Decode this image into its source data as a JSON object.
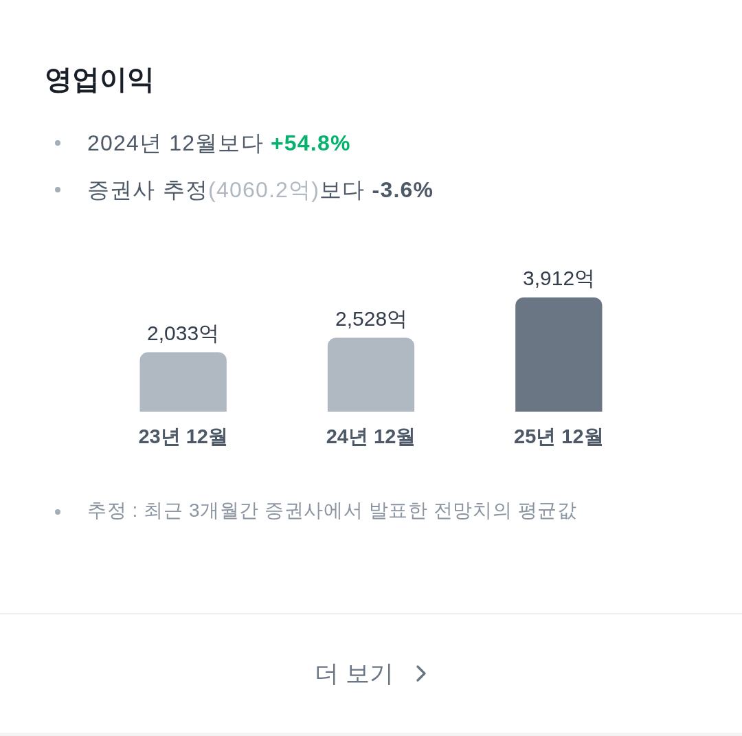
{
  "chart_data": {
    "type": "bar",
    "title": "영업이익",
    "annotations": [
      "2024년 12월보다 +54.8%",
      "증권사 추정(4060.2억)보다 -3.6%",
      "추정 : 최근 3개월간 증권사에서 발표한 전망치의 평균값",
      "더 보기"
    ],
    "categories": [
      "23년 12월",
      "24년 12월",
      "25년 12월"
    ],
    "values": [
      2033,
      2528,
      3912
    ],
    "colors": [
      "#b0b8c1",
      "#b0b8c1",
      "#6b7684"
    ],
    "value_labels": [
      "2,033억",
      "2,528억",
      "3,912억"
    ]
  }
}
